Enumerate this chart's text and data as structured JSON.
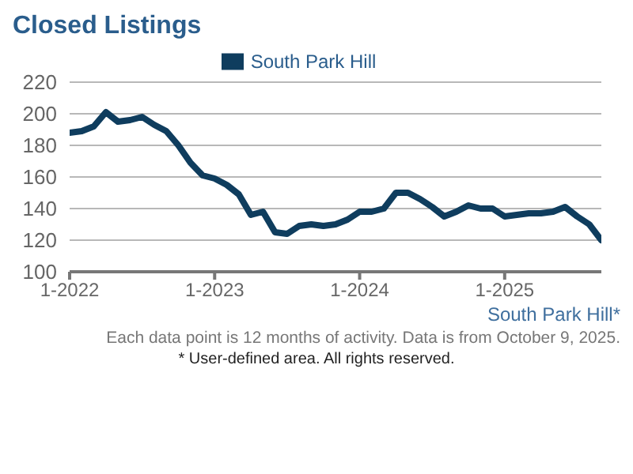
{
  "chart_data": {
    "type": "line",
    "title": "Closed Listings",
    "xlabel": "South Park Hill*",
    "x": [
      "2022-01",
      "2022-02",
      "2022-03",
      "2022-04",
      "2022-05",
      "2022-06",
      "2022-07",
      "2022-08",
      "2022-09",
      "2022-10",
      "2022-11",
      "2022-12",
      "2023-01",
      "2023-02",
      "2023-03",
      "2023-04",
      "2023-05",
      "2023-06",
      "2023-07",
      "2023-08",
      "2023-09",
      "2023-10",
      "2023-11",
      "2023-12",
      "2024-01",
      "2024-02",
      "2024-03",
      "2024-04",
      "2024-05",
      "2024-06",
      "2024-07",
      "2024-08",
      "2024-09",
      "2024-10",
      "2024-11",
      "2024-12",
      "2025-01",
      "2025-02",
      "2025-03",
      "2025-04",
      "2025-05",
      "2025-06",
      "2025-07",
      "2025-08",
      "2025-09"
    ],
    "series": [
      {
        "name": "South Park Hill",
        "color": "#0f3d5e",
        "values": [
          188,
          189,
          192,
          201,
          195,
          196,
          198,
          193,
          189,
          180,
          169,
          161,
          159,
          155,
          149,
          136,
          138,
          125,
          124,
          129,
          130,
          129,
          130,
          133,
          138,
          138,
          140,
          150,
          150,
          146,
          141,
          135,
          138,
          142,
          140,
          140,
          135,
          136,
          137,
          137,
          138,
          141,
          135,
          130,
          120
        ]
      }
    ],
    "xlim": [
      "2022-01",
      "2025-09"
    ],
    "xticks": [
      {
        "value": "2022-01",
        "label": "1-2022"
      },
      {
        "value": "2023-01",
        "label": "1-2023"
      },
      {
        "value": "2024-01",
        "label": "1-2024"
      },
      {
        "value": "2025-01",
        "label": "1-2025"
      }
    ],
    "ylim": [
      100,
      220
    ],
    "yticks": [
      100,
      120,
      140,
      160,
      180,
      200,
      220
    ],
    "grid": "y",
    "legend": "top",
    "marker": "none",
    "line_style": "solid",
    "annotations": [
      "Each data point is 12 months of activity. Data is from October 9, 2025.",
      "* User-defined area. All rights reserved."
    ]
  }
}
